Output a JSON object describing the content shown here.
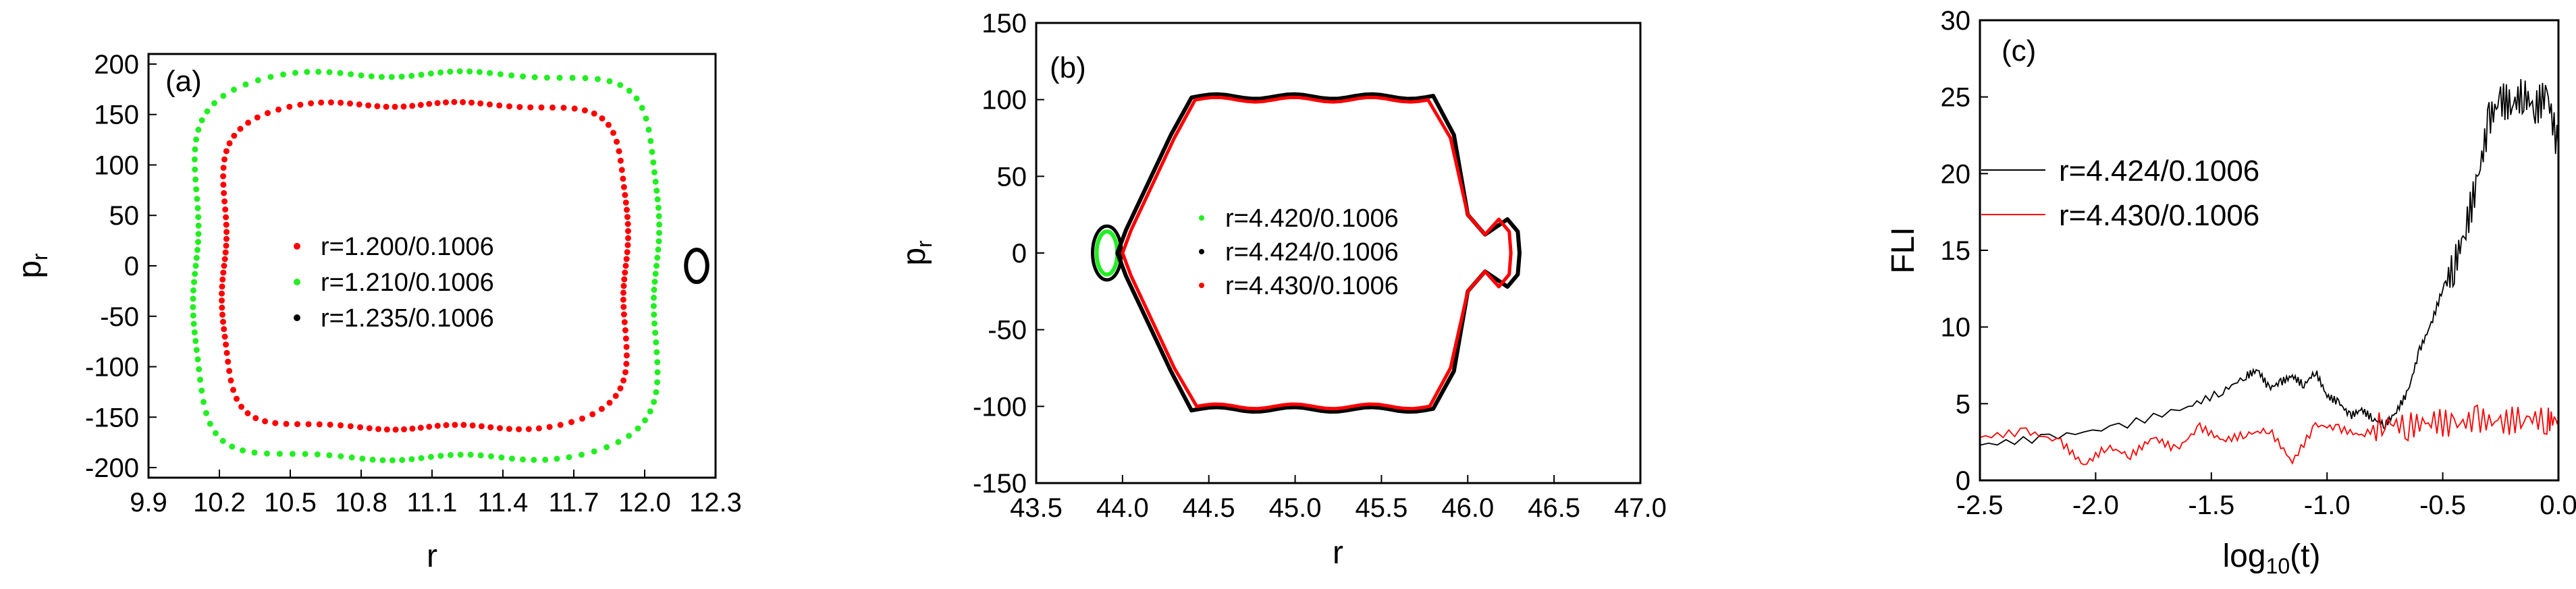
{
  "colors": {
    "red": "#ff0000",
    "green": "#22ee22",
    "black": "#000000"
  },
  "chart_data": [
    {
      "type": "scatter",
      "label": "(a)",
      "xlabel": "r",
      "ylabel_main": "p",
      "ylabel_sub": "r",
      "xlim": [
        9.9,
        12.3
      ],
      "ylim": [
        -210,
        210
      ],
      "xticks": [
        "9.9",
        "10.2",
        "10.5",
        "10.8",
        "11.1",
        "11.4",
        "11.7",
        "12.0",
        "12.3"
      ],
      "yticks": [
        "200",
        "150",
        "100",
        "50",
        "0",
        "-50",
        "-100",
        "-150",
        "-200"
      ],
      "legend": [
        "r=1.200/0.1006",
        "r=1.210/0.1006",
        "r=1.235/0.1006"
      ],
      "series": [
        {
          "name": "r=1.200/0.1006",
          "color": "red",
          "shape": "loop",
          "xmin": 10.22,
          "xmax": 11.92,
          "ymin": -160,
          "ymax": 160,
          "wobble": 4
        },
        {
          "name": "r=1.210/0.1006",
          "color": "green",
          "shape": "loop",
          "xmin": 10.1,
          "xmax": 12.05,
          "ymin": -190,
          "ymax": 190,
          "wobble": 4
        },
        {
          "name": "r=1.235/0.1006",
          "color": "black",
          "shape": "ellipse",
          "cx": 12.22,
          "cy": 0,
          "rx": 0.045,
          "ry": 16
        }
      ]
    },
    {
      "type": "scatter",
      "label": "(b)",
      "xlabel": "r",
      "ylabel_main": "p",
      "ylabel_sub": "r",
      "xlim": [
        43.5,
        47.0
      ],
      "ylim": [
        -150,
        150
      ],
      "xticks": [
        "43.5",
        "44.0",
        "44.5",
        "45.0",
        "45.5",
        "46.0",
        "46.5",
        "47.0"
      ],
      "yticks": [
        "150",
        "100",
        "50",
        "0",
        "-50",
        "-100",
        "-150"
      ],
      "legend": [
        "r=4.420/0.1006",
        "r=4.424/0.1006",
        "r=4.430/0.1006"
      ],
      "series": [
        {
          "name": "r=4.420/0.1006",
          "color": "green",
          "shape": "island",
          "cx": 43.91,
          "cy": 0,
          "rx": 0.06,
          "ry": 14
        },
        {
          "name": "r=4.424/0.1006",
          "color": "black",
          "shape": "hexloop",
          "xl": 43.97,
          "xr": 46.3,
          "xtop1": 44.4,
          "xtop2": 45.8,
          "ytop": 102
        },
        {
          "name": "r=4.430/0.1006",
          "color": "red",
          "shape": "hexloop",
          "xl": 44.0,
          "xr": 46.25,
          "xtop1": 44.42,
          "xtop2": 45.78,
          "ytop": 100
        }
      ]
    },
    {
      "type": "line",
      "label": "(c)",
      "xlabel": "log",
      "xlabel_sub": "10",
      "xlabel_suffix": "(t)",
      "ylabel": "FLI",
      "xlim": [
        -2.5,
        0.0
      ],
      "ylim": [
        0,
        30
      ],
      "xticks": [
        "-2.5",
        "-2.0",
        "-1.5",
        "-1.0",
        "-0.5",
        "0.0"
      ],
      "yticks": [
        "30",
        "25",
        "20",
        "15",
        "10",
        "5",
        "0"
      ],
      "legend": [
        "r=4.424/0.1006",
        "r=4.430/0.1006"
      ],
      "series": [
        {
          "name": "r=4.424/0.1006",
          "color": "black",
          "x": [
            -2.5,
            -2.2,
            -1.9,
            -1.6,
            -1.45,
            -1.35,
            -1.3,
            -1.25,
            -1.2,
            -1.15,
            -1.1,
            -1.05,
            -1.0,
            -0.95,
            -0.9,
            -0.85,
            -0.8,
            -0.75,
            -0.7,
            -0.65,
            -0.6,
            -0.55,
            -0.5,
            -0.45,
            -0.4,
            -0.35,
            -0.3,
            -0.25,
            -0.2,
            -0.15,
            -0.1,
            -0.05,
            0.0
          ],
          "y": [
            2.3,
            2.8,
            3.5,
            4.8,
            5.8,
            6.8,
            7.2,
            6.0,
            6.4,
            6.8,
            6.2,
            7.1,
            5.5,
            5.1,
            4.2,
            4.6,
            4.0,
            3.6,
            4.5,
            5.8,
            8.5,
            10.2,
            12.5,
            14.0,
            16.5,
            19.5,
            23.5,
            24.8,
            24.5,
            25.2,
            24.2,
            25.3,
            21.5
          ]
        },
        {
          "name": "r=4.430/0.1006",
          "color": "red",
          "x": [
            -2.5,
            -2.3,
            -2.15,
            -2.05,
            -1.95,
            -1.85,
            -1.75,
            -1.65,
            -1.55,
            -1.45,
            -1.35,
            -1.25,
            -1.15,
            -1.05,
            -0.95,
            -0.85,
            -0.75,
            -0.65,
            -0.55,
            -0.45,
            -0.35,
            -0.25,
            -0.15,
            -0.05,
            0.0
          ],
          "y": [
            2.8,
            3.2,
            2.5,
            1.0,
            2.2,
            1.6,
            2.8,
            2.0,
            3.5,
            2.6,
            3.0,
            3.3,
            1.2,
            3.6,
            3.4,
            2.9,
            3.8,
            3.5,
            3.9,
            3.6,
            4.0,
            3.7,
            4.1,
            3.9,
            4.0
          ]
        }
      ]
    }
  ]
}
